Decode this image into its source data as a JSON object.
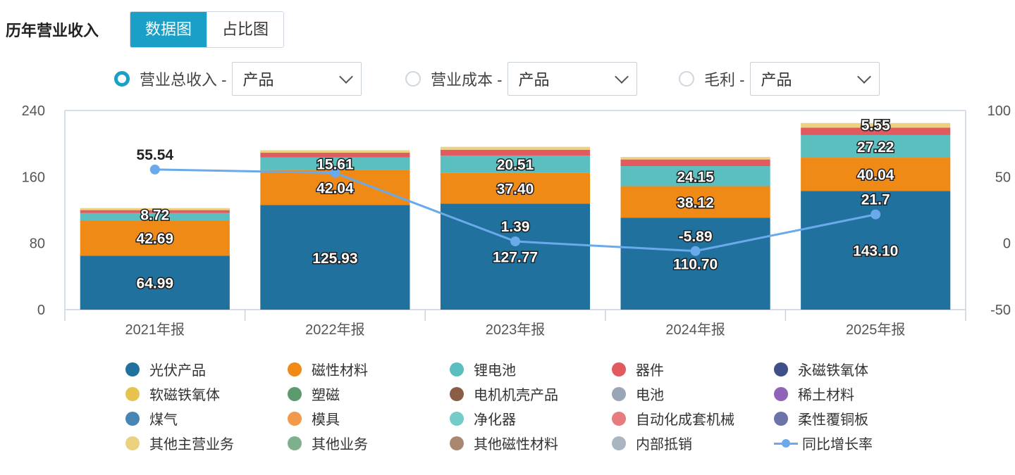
{
  "header": {
    "title": "历年营业收入",
    "tabs": [
      {
        "label": "数据图",
        "active": true
      },
      {
        "label": "占比图",
        "active": false
      }
    ]
  },
  "selectors": [
    {
      "label": "营业总收入 -",
      "value": "产品",
      "checked": true
    },
    {
      "label": "营业成本 -",
      "value": "产品",
      "checked": false
    },
    {
      "label": "毛利 -",
      "value": "产品",
      "checked": false
    }
  ],
  "colors": {
    "accent": "#1a9fc7",
    "axis": "#c8d3e2",
    "tick_text": "#555555",
    "line": "#6aa9ea"
  },
  "chart_data": {
    "type": "bar",
    "stacked": true,
    "categories": [
      "2021年报",
      "2022年报",
      "2023年报",
      "2024年报",
      "2025年报"
    ],
    "ylim": [
      0,
      240
    ],
    "yticks": [
      "0",
      "80",
      "160",
      "240"
    ],
    "y2lim": [
      -50,
      100
    ],
    "y2ticks": [
      "-50",
      "0",
      "50",
      "100"
    ],
    "series": [
      {
        "name": "光伏产品",
        "color": "#21719f",
        "values": [
          64.99,
          125.93,
          127.77,
          110.7,
          143.1
        ],
        "labels": [
          "64.99",
          "125.93",
          "127.77",
          "110.70",
          "143.10"
        ]
      },
      {
        "name": "磁性材料",
        "color": "#f08a16",
        "values": [
          42.69,
          42.04,
          37.4,
          38.12,
          40.04
        ],
        "labels": [
          "42.69",
          "42.04",
          "37.40",
          "38.12",
          "40.04"
        ]
      },
      {
        "name": "锂电池",
        "color": "#5bbfc0",
        "values": [
          8.72,
          15.61,
          20.51,
          24.15,
          27.22
        ],
        "labels": [
          "8.72",
          "15.61",
          "20.51",
          "24.15",
          "27.22"
        ]
      },
      {
        "name": "器件",
        "color": "#e05a60",
        "values": [
          3.5,
          5.5,
          7.0,
          8.0,
          9.0
        ],
        "labels": [
          "",
          "",
          "",
          "",
          ""
        ]
      },
      {
        "name": "其他主营业务",
        "color": "#ecd27f",
        "values": [
          2.5,
          3.0,
          3.5,
          3.0,
          5.55
        ],
        "labels": [
          "",
          "",
          "",
          "",
          "5.55"
        ]
      }
    ],
    "line_series": {
      "name": "同比增长率",
      "axis": "right",
      "color": "#6aa9ea",
      "values": [
        55.54,
        53,
        1.39,
        -5.89,
        21.7
      ],
      "labels": [
        "55.54",
        "",
        "1.39",
        "-5.89",
        "21.7"
      ]
    },
    "legend": [
      {
        "name": "光伏产品",
        "color": "#21719f"
      },
      {
        "name": "磁性材料",
        "color": "#f08a16"
      },
      {
        "name": "锂电池",
        "color": "#5bbfc0"
      },
      {
        "name": "器件",
        "color": "#e05a60"
      },
      {
        "name": "永磁铁氧体",
        "color": "#3f4f8a"
      },
      {
        "name": "软磁铁氧体",
        "color": "#e6c34e"
      },
      {
        "name": "塑磁",
        "color": "#5a9a6e"
      },
      {
        "name": "电机机壳产品",
        "color": "#8a5e46"
      },
      {
        "name": "电池",
        "color": "#98a6b7"
      },
      {
        "name": "稀土材料",
        "color": "#8e63b8"
      },
      {
        "name": "煤气",
        "color": "#4786b4"
      },
      {
        "name": "模具",
        "color": "#f3994c"
      },
      {
        "name": "净化器",
        "color": "#75cbc8"
      },
      {
        "name": "自动化成套机械",
        "color": "#e67c7f"
      },
      {
        "name": "柔性覆铜板",
        "color": "#6b73a8"
      },
      {
        "name": "其他主营业务",
        "color": "#ecd27f"
      },
      {
        "name": "其他业务",
        "color": "#7fb08e"
      },
      {
        "name": "其他磁性材料",
        "color": "#a98872"
      },
      {
        "name": "内部抵销",
        "color": "#aab5c2"
      },
      {
        "name": "同比增长率",
        "color": "#6aa9ea",
        "line": true
      }
    ]
  }
}
